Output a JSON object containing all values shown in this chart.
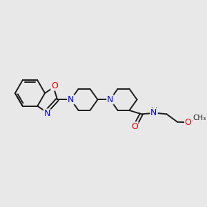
{
  "background_color": "#e8e8e8",
  "bond_color": "#1a1a1a",
  "N_color": "#0000ee",
  "O_color": "#ee0000",
  "H_color": "#4a9090",
  "line_width": 1.4,
  "font_size": 8.5,
  "figsize": [
    3.0,
    3.0
  ],
  "dpi": 100,
  "xlim": [
    0,
    10
  ],
  "ylim": [
    0,
    10
  ]
}
